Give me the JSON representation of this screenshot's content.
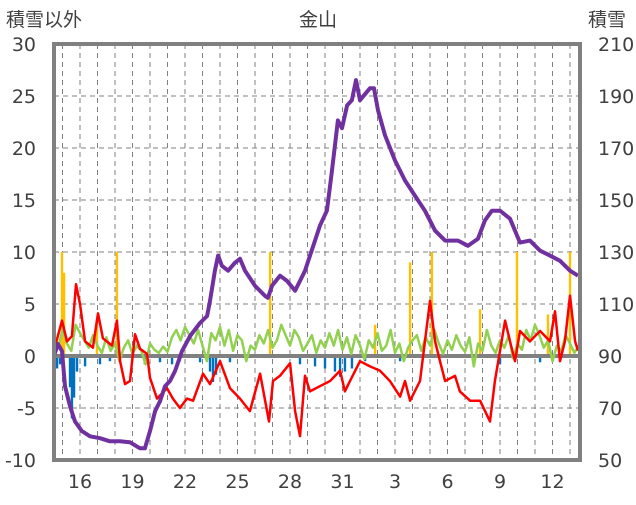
{
  "chart_data": {
    "type": "line",
    "title": "金山",
    "ylabel_left": "積雪以外",
    "ylabel_right": "積雪",
    "ylim_left": [
      -10,
      30
    ],
    "ylim_right": [
      50,
      210
    ],
    "yticks_left": [
      -10,
      -5,
      0,
      5,
      10,
      15,
      20,
      25,
      30
    ],
    "yticks_right": [
      50,
      70,
      90,
      110,
      130,
      150,
      170,
      190,
      210
    ],
    "xlim_days": [
      14.5,
      44.6
    ],
    "xticks": [
      {
        "day": 16,
        "label": "16"
      },
      {
        "day": 19,
        "label": "19"
      },
      {
        "day": 22,
        "label": "22"
      },
      {
        "day": 25,
        "label": "25"
      },
      {
        "day": 28,
        "label": "28"
      },
      {
        "day": 31,
        "label": "31"
      },
      {
        "day": 34,
        "label": "3"
      },
      {
        "day": 37,
        "label": "6"
      },
      {
        "day": 40,
        "label": "9"
      },
      {
        "day": 43,
        "label": "12"
      }
    ],
    "grid": true,
    "colors": {
      "snow": "#7030a0",
      "red": "#ff0000",
      "green": "#92d050",
      "yellow": "#ffc000",
      "blue": "#0070c0",
      "frame": "#808080"
    },
    "series": [
      {
        "name": "積雪",
        "axis": "right",
        "color": "#7030a0",
        "points": [
          [
            14.51,
            90
          ],
          [
            14.74,
            94.6
          ],
          [
            14.97,
            91.9
          ],
          [
            15.14,
            78.4
          ],
          [
            15.43,
            70.7
          ],
          [
            15.71,
            64.9
          ],
          [
            16.11,
            61.1
          ],
          [
            16.57,
            59.1
          ],
          [
            17.14,
            58.4
          ],
          [
            17.71,
            57.2
          ],
          [
            18.29,
            57.2
          ],
          [
            18.86,
            56.8
          ],
          [
            19.43,
            54.5
          ],
          [
            19.71,
            54.5
          ],
          [
            20.0,
            61.1
          ],
          [
            20.29,
            68.8
          ],
          [
            20.57,
            72.6
          ],
          [
            20.86,
            78.4
          ],
          [
            21.14,
            80.4
          ],
          [
            21.43,
            84.2
          ],
          [
            21.83,
            91.9
          ],
          [
            22.29,
            97.7
          ],
          [
            22.86,
            102.7
          ],
          [
            23.26,
            105.4
          ],
          [
            23.43,
            111.2
          ],
          [
            23.71,
            122.8
          ],
          [
            23.89,
            128.6
          ],
          [
            24.11,
            124.7
          ],
          [
            24.46,
            122.8
          ],
          [
            24.86,
            125.9
          ],
          [
            25.14,
            127.4
          ],
          [
            25.43,
            122.8
          ],
          [
            26.0,
            117.0
          ],
          [
            26.57,
            113.1
          ],
          [
            26.74,
            112.4
          ],
          [
            26.97,
            117.0
          ],
          [
            27.43,
            120.9
          ],
          [
            27.83,
            118.9
          ],
          [
            28.29,
            115.1
          ],
          [
            28.57,
            118.9
          ],
          [
            28.86,
            122.8
          ],
          [
            29.14,
            128.6
          ],
          [
            29.43,
            134.4
          ],
          [
            29.71,
            140.1
          ],
          [
            30.11,
            145.9
          ],
          [
            30.4,
            161.4
          ],
          [
            30.74,
            180.6
          ],
          [
            30.97,
            177.6
          ],
          [
            31.26,
            186.4
          ],
          [
            31.54,
            188.4
          ],
          [
            31.77,
            196.1
          ],
          [
            32.0,
            188.4
          ],
          [
            32.57,
            193.0
          ],
          [
            32.8,
            193.0
          ],
          [
            33.03,
            184.5
          ],
          [
            33.43,
            174.9
          ],
          [
            34.0,
            165.2
          ],
          [
            34.57,
            157.5
          ],
          [
            35.14,
            151.7
          ],
          [
            35.71,
            145.9
          ],
          [
            36.29,
            138.2
          ],
          [
            36.86,
            134.4
          ],
          [
            37.6,
            134.4
          ],
          [
            38.17,
            132.4
          ],
          [
            38.74,
            135.1
          ],
          [
            39.14,
            142.1
          ],
          [
            39.54,
            145.9
          ],
          [
            40.0,
            145.9
          ],
          [
            40.57,
            142.8
          ],
          [
            41.14,
            133.6
          ],
          [
            41.71,
            134.4
          ],
          [
            42.29,
            130.5
          ],
          [
            42.86,
            128.6
          ],
          [
            43.43,
            126.6
          ],
          [
            44.0,
            122.8
          ],
          [
            44.46,
            120.9
          ]
        ]
      },
      {
        "name": "red",
        "axis": "left",
        "color": "#ff0000",
        "points": [
          [
            14.51,
            0.5
          ],
          [
            14.97,
            3.4
          ],
          [
            15.26,
            1.4
          ],
          [
            15.54,
            1.9
          ],
          [
            15.77,
            6.9
          ],
          [
            16.0,
            5.0
          ],
          [
            16.29,
            1.4
          ],
          [
            16.74,
            0.8
          ],
          [
            17.03,
            4.1
          ],
          [
            17.31,
            1.7
          ],
          [
            17.83,
            1.0
          ],
          [
            18.11,
            3.4
          ],
          [
            18.29,
            -0.5
          ],
          [
            18.57,
            -2.7
          ],
          [
            18.86,
            -2.4
          ],
          [
            19.14,
            2.1
          ],
          [
            19.43,
            0.7
          ],
          [
            19.83,
            0.2
          ],
          [
            20.0,
            -2.1
          ],
          [
            20.4,
            -4.1
          ],
          [
            20.97,
            -3.1
          ],
          [
            21.31,
            -4.1
          ],
          [
            21.71,
            -5.0
          ],
          [
            22.11,
            -4.1
          ],
          [
            22.46,
            -4.3
          ],
          [
            23.03,
            -1.7
          ],
          [
            23.43,
            -2.7
          ],
          [
            24.0,
            -0.5
          ],
          [
            24.57,
            -3.1
          ],
          [
            25.14,
            -4.1
          ],
          [
            25.71,
            -5.3
          ],
          [
            26.29,
            -1.7
          ],
          [
            26.8,
            -6.3
          ],
          [
            27.03,
            -2.4
          ],
          [
            27.43,
            -1.9
          ],
          [
            28.0,
            -0.7
          ],
          [
            28.29,
            -5.3
          ],
          [
            28.57,
            -7.7
          ],
          [
            28.86,
            -1.9
          ],
          [
            29.14,
            -3.4
          ],
          [
            29.71,
            -2.9
          ],
          [
            30.29,
            -2.4
          ],
          [
            30.86,
            -1.4
          ],
          [
            31.14,
            -3.4
          ],
          [
            31.43,
            -2.4
          ],
          [
            32.0,
            -0.5
          ],
          [
            32.57,
            -1.0
          ],
          [
            33.14,
            -1.4
          ],
          [
            33.71,
            -2.4
          ],
          [
            34.29,
            -3.9
          ],
          [
            34.57,
            -2.4
          ],
          [
            34.86,
            -4.3
          ],
          [
            35.43,
            -2.4
          ],
          [
            36.0,
            5.3
          ],
          [
            36.29,
            1.4
          ],
          [
            36.57,
            -0.5
          ],
          [
            36.86,
            -2.4
          ],
          [
            37.43,
            -1.9
          ],
          [
            37.71,
            -3.4
          ],
          [
            38.29,
            -4.3
          ],
          [
            38.86,
            -4.3
          ],
          [
            39.43,
            -6.3
          ],
          [
            39.71,
            -2.4
          ],
          [
            40.0,
            0.5
          ],
          [
            40.29,
            3.4
          ],
          [
            40.57,
            1.4
          ],
          [
            40.86,
            -0.5
          ],
          [
            41.14,
            2.4
          ],
          [
            41.71,
            1.4
          ],
          [
            42.29,
            2.4
          ],
          [
            42.86,
            1.4
          ],
          [
            43.14,
            4.3
          ],
          [
            43.43,
            -0.5
          ],
          [
            43.71,
            1.4
          ],
          [
            44.0,
            5.8
          ],
          [
            44.29,
            1.4
          ],
          [
            44.46,
            0.5
          ]
        ]
      },
      {
        "name": "green",
        "axis": "left",
        "color": "#92d050",
        "start_day": 14.5,
        "step_day": 0.25,
        "values": [
          1.5,
          0.8,
          2.5,
          1.2,
          0.5,
          3.0,
          2.2,
          1.5,
          0.8,
          2.0,
          1.0,
          0.3,
          1.8,
          0.5,
          1.2,
          -0.5,
          0.8,
          1.5,
          0.2,
          1.0,
          0.5,
          -0.8,
          1.2,
          0.6,
          0.3,
          0.9,
          0.4,
          1.8,
          2.5,
          1.5,
          2.8,
          2.0,
          1.2,
          2.5,
          1.0,
          -0.5,
          2.2,
          1.5,
          2.8,
          1.0,
          2.5,
          0.5,
          2.0,
          1.5,
          -0.5,
          1.0,
          0.6,
          2.0,
          1.2,
          2.5,
          0.8,
          1.5,
          3.0,
          2.0,
          1.0,
          2.5,
          1.8,
          0.5,
          1.2,
          2.0,
          0.3,
          1.5,
          0.8,
          2.2,
          1.0,
          2.5,
          0.6,
          1.8,
          0.2,
          2.0,
          1.0,
          -0.3,
          1.5,
          0.8,
          2.2,
          0.5,
          1.0,
          2.5,
          0.3,
          1.2,
          -0.5,
          0.8,
          1.5,
          2.0,
          0.5,
          1.8,
          1.0,
          2.5,
          1.2,
          0.2,
          1.5,
          0.6,
          2.0,
          1.0,
          0.4,
          1.8,
          -1.0,
          1.2,
          0.5,
          2.5,
          1.0,
          0.3,
          1.5,
          0.8,
          2.0,
          -0.2,
          1.2,
          0.6,
          2.5,
          1.5,
          3.0,
          2.0,
          0.8,
          1.5,
          -0.5,
          1.0,
          0.5,
          2.0,
          1.2,
          0.3,
          1.0
        ]
      }
    ],
    "bars": [
      {
        "name": "yellow",
        "color": "#ffc000",
        "points": [
          [
            14.97,
            10
          ],
          [
            15.09,
            8
          ],
          [
            16.97,
            3.5
          ],
          [
            18.11,
            10
          ],
          [
            26.86,
            10
          ],
          [
            32.86,
            3
          ],
          [
            34.86,
            9
          ],
          [
            36.11,
            10
          ],
          [
            38.86,
            4.5
          ],
          [
            40.97,
            10
          ],
          [
            42.74,
            4
          ],
          [
            44.0,
            10
          ]
        ]
      },
      {
        "name": "blue",
        "color": "#0070c0",
        "points": [
          [
            14.69,
            -1.2
          ],
          [
            14.86,
            -0.8
          ],
          [
            15.43,
            -3
          ],
          [
            15.54,
            -6
          ],
          [
            15.66,
            -4
          ],
          [
            15.83,
            -1.5
          ],
          [
            16.29,
            -1
          ],
          [
            17.14,
            -0.8
          ],
          [
            17.71,
            -0.5
          ],
          [
            19.71,
            -0.8
          ],
          [
            20.57,
            -0.6
          ],
          [
            21.26,
            -0.8
          ],
          [
            21.71,
            -0.5
          ],
          [
            22.86,
            -0.6
          ],
          [
            23.43,
            -1.5
          ],
          [
            23.6,
            -2.5
          ],
          [
            23.77,
            -1.8
          ],
          [
            24.57,
            -0.6
          ],
          [
            28.57,
            -0.8
          ],
          [
            29.43,
            -1
          ],
          [
            30.0,
            -1.2
          ],
          [
            30.57,
            -1.5
          ],
          [
            30.86,
            -2
          ],
          [
            31.14,
            -1.5
          ],
          [
            31.54,
            -1.2
          ],
          [
            32.29,
            -0.5
          ],
          [
            34.29,
            -0.5
          ],
          [
            40.0,
            -0.8
          ],
          [
            42.29,
            -0.6
          ]
        ]
      }
    ]
  }
}
